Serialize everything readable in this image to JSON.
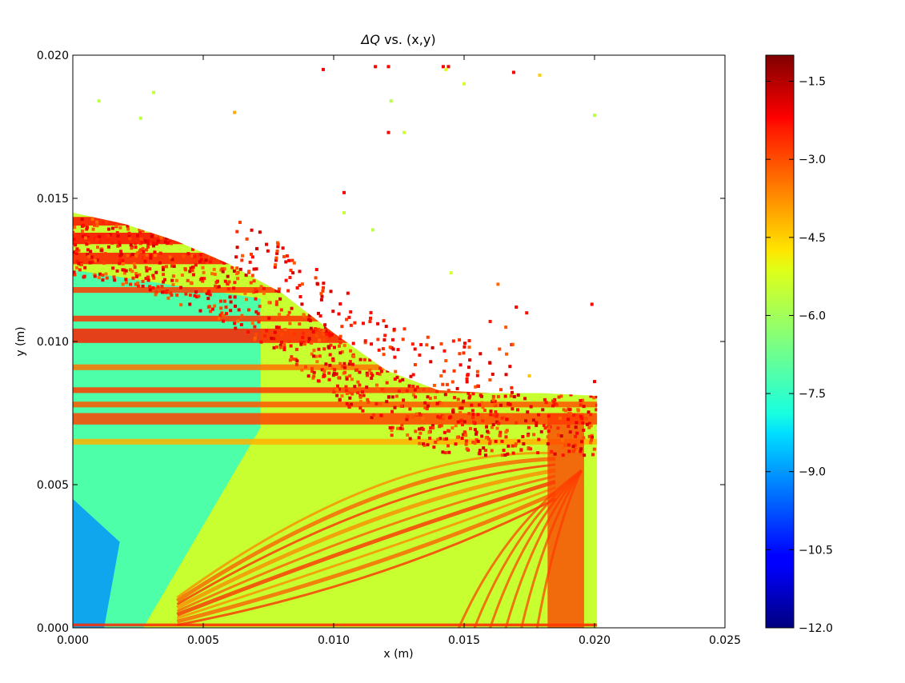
{
  "chart_data": {
    "type": "scatter",
    "title_prefix": "ΔQ",
    "title_suffix": " vs. (x,y)",
    "xlabel": "x (m)",
    "ylabel": "y (m)",
    "xlim": [
      0.0,
      0.025
    ],
    "ylim": [
      0.0,
      0.02
    ],
    "xticks": [
      "0.000",
      "0.005",
      "0.010",
      "0.015",
      "0.020",
      "0.025"
    ],
    "yticks": [
      "0.000",
      "0.005",
      "0.010",
      "0.015",
      "0.020"
    ],
    "colorbar": {
      "colormap": "jet",
      "vmin": -12.0,
      "vmax": -1.0,
      "ticks": [
        "−1.5",
        "−3.0",
        "−4.5",
        "−6.0",
        "−7.5",
        "−9.0",
        "−10.5",
        "−12.0"
      ],
      "tick_values": [
        -1.5,
        -3.0,
        -4.5,
        -6.0,
        -7.5,
        -9.0,
        -10.5,
        -12.0
      ]
    },
    "dense_region": {
      "x_range": [
        0.0,
        0.0201
      ],
      "y_max_profile": [
        [
          0.0,
          0.0145
        ],
        [
          0.002,
          0.0141
        ],
        [
          0.004,
          0.0135
        ],
        [
          0.006,
          0.0127
        ],
        [
          0.008,
          0.0117
        ],
        [
          0.01,
          0.0103
        ],
        [
          0.012,
          0.009
        ],
        [
          0.014,
          0.0083
        ],
        [
          0.016,
          0.0082
        ],
        [
          0.018,
          0.0082
        ],
        [
          0.0201,
          0.0081
        ]
      ],
      "value_range": [
        -12.0,
        -1.0
      ]
    },
    "sparse_points": [
      {
        "x": 0.001,
        "y": 0.0184,
        "value": -5.9
      },
      {
        "x": 0.0026,
        "y": 0.0178,
        "value": -5.9
      },
      {
        "x": 0.0031,
        "y": 0.0187,
        "value": -5.8
      },
      {
        "x": 0.0062,
        "y": 0.018,
        "value": -4.2
      },
      {
        "x": 0.0096,
        "y": 0.0195,
        "value": -2.3
      },
      {
        "x": 0.0116,
        "y": 0.0196,
        "value": -2.3
      },
      {
        "x": 0.0121,
        "y": 0.0196,
        "value": -2.3
      },
      {
        "x": 0.0142,
        "y": 0.0196,
        "value": -2.3
      },
      {
        "x": 0.0144,
        "y": 0.0196,
        "value": -2.3
      },
      {
        "x": 0.0143,
        "y": 0.0195,
        "value": -5.5
      },
      {
        "x": 0.0169,
        "y": 0.0194,
        "value": -2.3
      },
      {
        "x": 0.0179,
        "y": 0.0193,
        "value": -4.6
      },
      {
        "x": 0.015,
        "y": 0.019,
        "value": -5.6
      },
      {
        "x": 0.0122,
        "y": 0.0184,
        "value": -5.9
      },
      {
        "x": 0.0121,
        "y": 0.0173,
        "value": -2.3
      },
      {
        "x": 0.0127,
        "y": 0.0173,
        "value": -5.7
      },
      {
        "x": 0.02,
        "y": 0.0179,
        "value": -5.9
      },
      {
        "x": 0.0104,
        "y": 0.0152,
        "value": -2.3
      },
      {
        "x": 0.0104,
        "y": 0.0145,
        "value": -5.7
      },
      {
        "x": 0.0115,
        "y": 0.0139,
        "value": -5.8
      },
      {
        "x": 0.0145,
        "y": 0.0124,
        "value": -5.6
      },
      {
        "x": 0.0163,
        "y": 0.012,
        "value": -3.5
      },
      {
        "x": 0.017,
        "y": 0.0112,
        "value": -2.3
      },
      {
        "x": 0.0174,
        "y": 0.011,
        "value": -2.5
      },
      {
        "x": 0.0199,
        "y": 0.0113,
        "value": -2.3
      },
      {
        "x": 0.016,
        "y": 0.0107,
        "value": -2.6
      },
      {
        "x": 0.0166,
        "y": 0.0105,
        "value": -3.3
      },
      {
        "x": 0.0152,
        "y": 0.0098,
        "value": -3.4
      },
      {
        "x": 0.0175,
        "y": 0.0088,
        "value": -4.5
      },
      {
        "x": 0.02,
        "y": 0.0086,
        "value": -2.3
      }
    ]
  }
}
